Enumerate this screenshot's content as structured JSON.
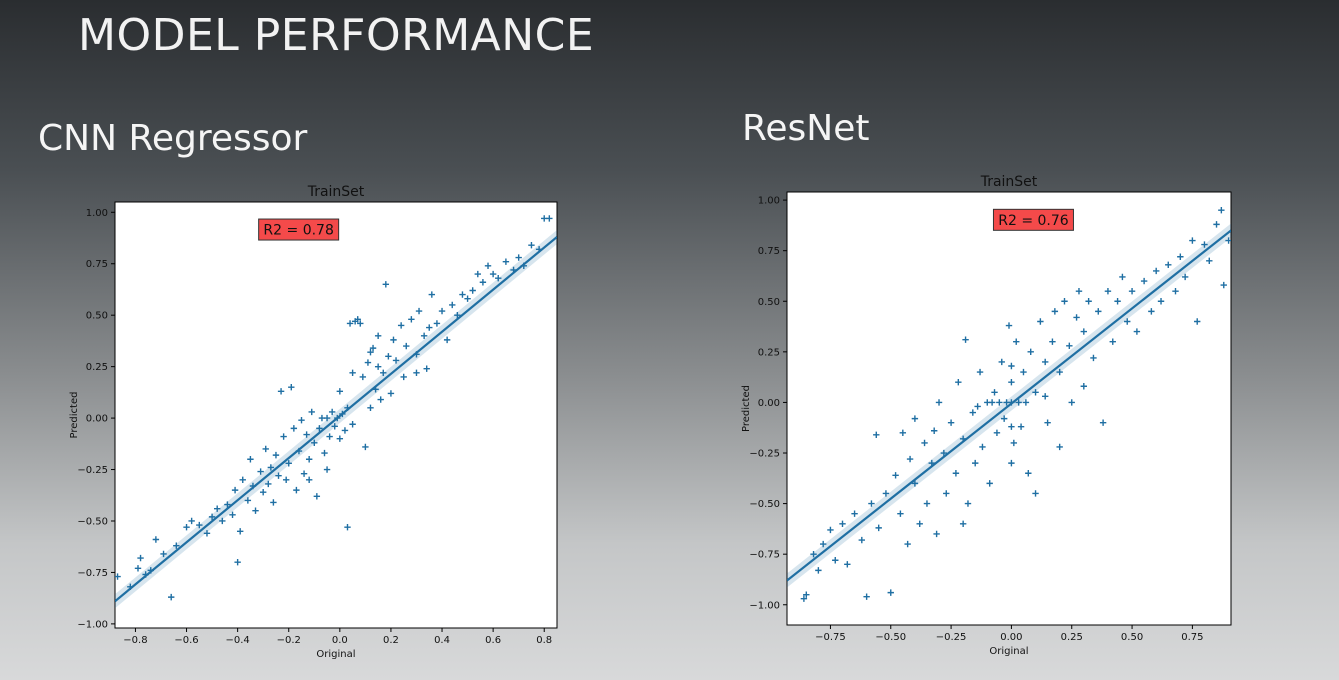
{
  "slide": {
    "title": "MODEL PERFORMANCE",
    "left_label": "CNN Regressor",
    "right_label": "ResNet"
  },
  "chart_data": [
    {
      "type": "scatter",
      "title": "TrainSet",
      "xlabel": "Original",
      "ylabel": "Predicted",
      "annotation": "R2 = 0.78",
      "annotation_color": "#f44a4a",
      "marker": "+",
      "marker_color": "#1f6fa3",
      "fit_line": {
        "x": [
          -0.88,
          0.85
        ],
        "y": [
          -0.89,
          0.88
        ]
      },
      "xlim": [
        -0.88,
        0.85
      ],
      "ylim": [
        -1.02,
        1.05
      ],
      "xticks": [
        -0.8,
        -0.6,
        -0.4,
        -0.2,
        0.0,
        0.2,
        0.4,
        0.6,
        0.8
      ],
      "xtick_labels": [
        "−0.8",
        "−0.6",
        "−0.4",
        "−0.2",
        "0.0",
        "0.2",
        "0.4",
        "0.6",
        "0.8"
      ],
      "yticks": [
        -1.0,
        -0.75,
        -0.5,
        -0.25,
        0.0,
        0.25,
        0.5,
        0.75,
        1.0
      ],
      "ytick_labels": [
        "−1.00",
        "−0.75",
        "−0.50",
        "−0.25",
        "0.00",
        "0.25",
        "0.50",
        "0.75",
        "1.00"
      ],
      "points": [
        [
          -0.87,
          -0.77
        ],
        [
          -0.82,
          -0.82
        ],
        [
          -0.79,
          -0.73
        ],
        [
          -0.78,
          -0.68
        ],
        [
          -0.76,
          -0.76
        ],
        [
          -0.74,
          -0.74
        ],
        [
          -0.72,
          -0.59
        ],
        [
          -0.69,
          -0.66
        ],
        [
          -0.66,
          -0.87
        ],
        [
          -0.64,
          -0.62
        ],
        [
          -0.6,
          -0.53
        ],
        [
          -0.58,
          -0.5
        ],
        [
          -0.55,
          -0.52
        ],
        [
          -0.52,
          -0.56
        ],
        [
          -0.5,
          -0.48
        ],
        [
          -0.48,
          -0.44
        ],
        [
          -0.46,
          -0.5
        ],
        [
          -0.44,
          -0.42
        ],
        [
          -0.42,
          -0.47
        ],
        [
          -0.41,
          -0.35
        ],
        [
          -0.4,
          -0.7
        ],
        [
          -0.39,
          -0.55
        ],
        [
          -0.38,
          -0.3
        ],
        [
          -0.36,
          -0.4
        ],
        [
          -0.35,
          -0.2
        ],
        [
          -0.34,
          -0.33
        ],
        [
          -0.33,
          -0.45
        ],
        [
          -0.31,
          -0.26
        ],
        [
          -0.3,
          -0.36
        ],
        [
          -0.29,
          -0.15
        ],
        [
          -0.28,
          -0.32
        ],
        [
          -0.27,
          -0.24
        ],
        [
          -0.26,
          -0.41
        ],
        [
          -0.25,
          -0.18
        ],
        [
          -0.24,
          -0.28
        ],
        [
          -0.23,
          0.13
        ],
        [
          -0.22,
          -0.09
        ],
        [
          -0.21,
          -0.3
        ],
        [
          -0.2,
          -0.22
        ],
        [
          -0.19,
          0.15
        ],
        [
          -0.18,
          -0.05
        ],
        [
          -0.17,
          -0.35
        ],
        [
          -0.16,
          -0.16
        ],
        [
          -0.15,
          -0.01
        ],
        [
          -0.14,
          -0.27
        ],
        [
          -0.13,
          -0.08
        ],
        [
          -0.12,
          -0.2
        ],
        [
          -0.11,
          0.03
        ],
        [
          -0.1,
          -0.12
        ],
        [
          -0.09,
          -0.38
        ],
        [
          -0.08,
          -0.05
        ],
        [
          -0.07,
          0.0
        ],
        [
          -0.06,
          -0.17
        ],
        [
          -0.05,
          0.0
        ],
        [
          -0.04,
          -0.09
        ],
        [
          -0.03,
          0.03
        ],
        [
          -0.02,
          -0.04
        ],
        [
          -0.01,
          0.0
        ],
        [
          0.0,
          -0.1
        ],
        [
          0.01,
          0.02
        ],
        [
          0.02,
          -0.06
        ],
        [
          0.03,
          0.05
        ],
        [
          0.04,
          0.46
        ],
        [
          0.05,
          -0.03
        ],
        [
          0.06,
          0.47
        ],
        [
          0.07,
          0.48
        ],
        [
          0.08,
          0.46
        ],
        [
          0.09,
          0.2
        ],
        [
          0.1,
          -0.14
        ],
        [
          0.11,
          0.27
        ],
        [
          0.12,
          0.05
        ],
        [
          0.13,
          0.34
        ],
        [
          0.14,
          0.14
        ],
        [
          0.15,
          0.4
        ],
        [
          0.16,
          0.09
        ],
        [
          0.17,
          0.22
        ],
        [
          0.18,
          0.65
        ],
        [
          0.19,
          0.3
        ],
        [
          0.2,
          0.12
        ],
        [
          0.21,
          0.38
        ],
        [
          0.22,
          0.28
        ],
        [
          0.24,
          0.45
        ],
        [
          0.25,
          0.2
        ],
        [
          0.26,
          0.35
        ],
        [
          0.28,
          0.48
        ],
        [
          0.3,
          0.31
        ],
        [
          0.31,
          0.52
        ],
        [
          0.33,
          0.4
        ],
        [
          0.34,
          0.24
        ],
        [
          0.35,
          0.44
        ],
        [
          0.36,
          0.6
        ],
        [
          0.38,
          0.46
        ],
        [
          0.4,
          0.52
        ],
        [
          0.42,
          0.38
        ],
        [
          0.44,
          0.55
        ],
        [
          0.46,
          0.5
        ],
        [
          0.48,
          0.6
        ],
        [
          0.5,
          0.58
        ],
        [
          0.52,
          0.62
        ],
        [
          0.54,
          0.7
        ],
        [
          0.56,
          0.66
        ],
        [
          0.58,
          0.74
        ],
        [
          0.6,
          0.7
        ],
        [
          0.62,
          0.68
        ],
        [
          0.65,
          0.76
        ],
        [
          0.68,
          0.72
        ],
        [
          0.7,
          0.78
        ],
        [
          0.72,
          0.74
        ],
        [
          0.75,
          0.84
        ],
        [
          0.78,
          0.82
        ],
        [
          0.8,
          0.97
        ],
        [
          0.82,
          0.97
        ],
        [
          0.12,
          0.32
        ],
        [
          0.03,
          -0.53
        ],
        [
          -0.05,
          -0.25
        ],
        [
          0.05,
          0.22
        ],
        [
          0.0,
          0.13
        ],
        [
          -0.12,
          -0.3
        ],
        [
          0.15,
          0.25
        ],
        [
          0.3,
          0.22
        ]
      ]
    },
    {
      "type": "scatter",
      "title": "TrainSet",
      "xlabel": "Original",
      "ylabel": "Predicted",
      "annotation": "R2 = 0.76",
      "annotation_color": "#f44a4a",
      "marker": "+",
      "marker_color": "#1f6fa3",
      "fit_line": {
        "x": [
          -0.93,
          0.91
        ],
        "y": [
          -0.88,
          0.85
        ]
      },
      "xlim": [
        -0.93,
        0.91
      ],
      "ylim": [
        -1.1,
        1.04
      ],
      "xticks": [
        -0.75,
        -0.5,
        -0.25,
        0.0,
        0.25,
        0.5,
        0.75
      ],
      "xtick_labels": [
        "−0.75",
        "−0.50",
        "−0.25",
        "0.00",
        "0.25",
        "0.50",
        "0.75"
      ],
      "yticks": [
        -1.0,
        -0.75,
        -0.5,
        -0.25,
        0.0,
        0.25,
        0.5,
        0.75,
        1.0
      ],
      "ytick_labels": [
        "−1.00",
        "−0.75",
        "−0.50",
        "−0.25",
        "0.00",
        "0.25",
        "0.50",
        "0.75",
        "1.00"
      ],
      "points": [
        [
          -0.86,
          -0.97
        ],
        [
          -0.85,
          -0.95
        ],
        [
          -0.82,
          -0.75
        ],
        [
          -0.8,
          -0.83
        ],
        [
          -0.78,
          -0.7
        ],
        [
          -0.75,
          -0.63
        ],
        [
          -0.73,
          -0.78
        ],
        [
          -0.7,
          -0.6
        ],
        [
          -0.68,
          -0.8
        ],
        [
          -0.65,
          -0.55
        ],
        [
          -0.62,
          -0.68
        ],
        [
          -0.6,
          -0.96
        ],
        [
          -0.58,
          -0.5
        ],
        [
          -0.56,
          -0.16
        ],
        [
          -0.55,
          -0.62
        ],
        [
          -0.52,
          -0.45
        ],
        [
          -0.5,
          -0.94
        ],
        [
          -0.48,
          -0.36
        ],
        [
          -0.46,
          -0.55
        ],
        [
          -0.45,
          -0.15
        ],
        [
          -0.43,
          -0.7
        ],
        [
          -0.42,
          -0.28
        ],
        [
          -0.4,
          -0.4
        ],
        [
          -0.38,
          -0.6
        ],
        [
          -0.36,
          -0.2
        ],
        [
          -0.35,
          -0.5
        ],
        [
          -0.33,
          -0.3
        ],
        [
          -0.31,
          -0.65
        ],
        [
          -0.3,
          0.0
        ],
        [
          -0.28,
          -0.25
        ],
        [
          -0.27,
          -0.45
        ],
        [
          -0.25,
          -0.1
        ],
        [
          -0.23,
          -0.35
        ],
        [
          -0.22,
          0.1
        ],
        [
          -0.2,
          -0.18
        ],
        [
          -0.19,
          0.31
        ],
        [
          -0.18,
          -0.5
        ],
        [
          -0.16,
          -0.05
        ],
        [
          -0.15,
          -0.3
        ],
        [
          -0.13,
          0.15
        ],
        [
          -0.12,
          -0.22
        ],
        [
          -0.1,
          0.0
        ],
        [
          -0.09,
          -0.4
        ],
        [
          -0.08,
          0.0
        ],
        [
          -0.07,
          0.05
        ],
        [
          -0.06,
          -0.15
        ],
        [
          -0.05,
          0.0
        ],
        [
          -0.04,
          0.2
        ],
        [
          -0.03,
          -0.08
        ],
        [
          -0.02,
          0.0
        ],
        [
          -0.01,
          0.38
        ],
        [
          0.0,
          0.0
        ],
        [
          0.0,
          -0.3
        ],
        [
          0.0,
          0.1
        ],
        [
          0.01,
          -0.2
        ],
        [
          0.02,
          0.3
        ],
        [
          0.03,
          0.0
        ],
        [
          0.04,
          -0.12
        ],
        [
          0.05,
          0.15
        ],
        [
          0.06,
          0.0
        ],
        [
          0.07,
          -0.35
        ],
        [
          0.08,
          0.25
        ],
        [
          0.1,
          0.05
        ],
        [
          0.12,
          0.4
        ],
        [
          0.14,
          0.2
        ],
        [
          0.15,
          -0.1
        ],
        [
          0.17,
          0.3
        ],
        [
          0.18,
          0.45
        ],
        [
          0.2,
          0.15
        ],
        [
          0.22,
          0.5
        ],
        [
          0.24,
          0.28
        ],
        [
          0.25,
          0.0
        ],
        [
          0.27,
          0.42
        ],
        [
          0.28,
          0.55
        ],
        [
          0.3,
          0.35
        ],
        [
          0.32,
          0.5
        ],
        [
          0.34,
          0.22
        ],
        [
          0.36,
          0.45
        ],
        [
          0.38,
          -0.1
        ],
        [
          0.4,
          0.55
        ],
        [
          0.42,
          0.3
        ],
        [
          0.44,
          0.5
        ],
        [
          0.46,
          0.62
        ],
        [
          0.48,
          0.4
        ],
        [
          0.5,
          0.55
        ],
        [
          0.52,
          0.35
        ],
        [
          0.55,
          0.6
        ],
        [
          0.58,
          0.45
        ],
        [
          0.6,
          0.65
        ],
        [
          0.62,
          0.5
        ],
        [
          0.65,
          0.68
        ],
        [
          0.68,
          0.55
        ],
        [
          0.7,
          0.72
        ],
        [
          0.72,
          0.62
        ],
        [
          0.75,
          0.8
        ],
        [
          0.77,
          0.4
        ],
        [
          0.8,
          0.78
        ],
        [
          0.82,
          0.7
        ],
        [
          0.85,
          0.88
        ],
        [
          0.87,
          0.95
        ],
        [
          0.88,
          0.58
        ],
        [
          0.9,
          0.8
        ],
        [
          -0.2,
          -0.6
        ],
        [
          0.1,
          -0.45
        ],
        [
          -0.32,
          -0.14
        ],
        [
          0.0,
          0.18
        ],
        [
          0.0,
          -0.12
        ],
        [
          -0.14,
          -0.02
        ],
        [
          0.14,
          0.03
        ],
        [
          0.2,
          -0.22
        ],
        [
          -0.4,
          -0.08
        ],
        [
          0.3,
          0.08
        ]
      ]
    }
  ]
}
